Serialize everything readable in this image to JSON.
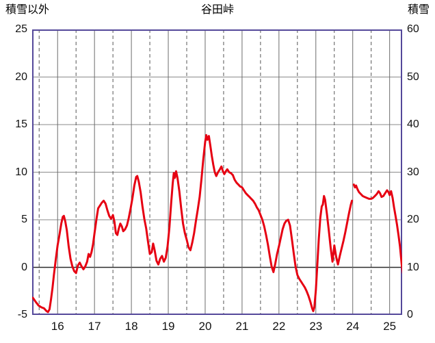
{
  "header": {
    "title": "谷田峠",
    "left_axis_label": "積雪以外",
    "right_axis_label": "積雪"
  },
  "chart_data": {
    "type": "line",
    "title": "谷田峠",
    "left_axis": {
      "label": "積雪以外",
      "ticks": [
        25,
        20,
        15,
        10,
        5,
        0,
        -5
      ],
      "range": [
        -5,
        25
      ]
    },
    "right_axis": {
      "label": "積雪",
      "ticks": [
        60,
        50,
        40,
        30,
        20,
        10,
        0
      ],
      "range": [
        0,
        60
      ]
    },
    "x_axis": {
      "ticks": [
        16,
        17,
        18,
        19,
        20,
        21,
        22,
        23,
        24,
        25
      ],
      "range": [
        15.31,
        25.34
      ]
    },
    "grid": {
      "h_values": [
        0,
        5,
        10,
        15,
        20
      ],
      "v_solid": [
        16,
        17,
        18,
        19,
        20,
        21,
        22,
        23,
        24,
        25
      ],
      "v_dashed": [
        15.5,
        16.5,
        17.5,
        18.5,
        19.5,
        20.5,
        21.5,
        22.5,
        23.5,
        24.5
      ]
    },
    "colors": {
      "line": "#e60012",
      "border": "#54489a",
      "grid": "#8a8a8a",
      "zero_line": "#2b2b2b",
      "dashed": "#555555",
      "background": "#ffffff"
    },
    "legend": "none",
    "series": [
      {
        "name": "red-line-segment-1",
        "points": [
          [
            15.33,
            -3.2
          ],
          [
            15.4,
            -3.6
          ],
          [
            15.48,
            -4.0
          ],
          [
            15.56,
            -4.2
          ],
          [
            15.63,
            -4.3
          ],
          [
            15.7,
            -4.6
          ],
          [
            15.74,
            -4.7
          ],
          [
            15.78,
            -4.4
          ],
          [
            15.82,
            -3.4
          ],
          [
            15.86,
            -2.2
          ],
          [
            15.9,
            -0.8
          ],
          [
            15.95,
            0.8
          ],
          [
            16.0,
            2.3
          ],
          [
            16.05,
            3.4
          ],
          [
            16.1,
            4.6
          ],
          [
            16.14,
            5.3
          ],
          [
            16.17,
            5.4
          ],
          [
            16.21,
            4.8
          ],
          [
            16.25,
            3.9
          ],
          [
            16.3,
            2.2
          ],
          [
            16.35,
            0.9
          ],
          [
            16.4,
            0.1
          ],
          [
            16.45,
            -0.4
          ],
          [
            16.5,
            -0.6
          ],
          [
            16.55,
            0.2
          ],
          [
            16.6,
            0.5
          ],
          [
            16.65,
            0.1
          ],
          [
            16.7,
            -0.2
          ],
          [
            16.75,
            0.1
          ],
          [
            16.8,
            0.6
          ],
          [
            16.84,
            1.4
          ],
          [
            16.88,
            1.1
          ],
          [
            16.92,
            1.6
          ],
          [
            16.96,
            2.4
          ],
          [
            17.0,
            3.6
          ],
          [
            17.05,
            5.0
          ],
          [
            17.1,
            6.2
          ],
          [
            17.15,
            6.5
          ],
          [
            17.2,
            6.8
          ],
          [
            17.25,
            7.0
          ],
          [
            17.3,
            6.7
          ],
          [
            17.35,
            6.0
          ],
          [
            17.4,
            5.4
          ],
          [
            17.45,
            5.1
          ],
          [
            17.5,
            5.5
          ],
          [
            17.54,
            4.8
          ],
          [
            17.58,
            3.6
          ],
          [
            17.62,
            3.4
          ],
          [
            17.66,
            4.1
          ],
          [
            17.7,
            4.6
          ],
          [
            17.74,
            4.3
          ],
          [
            17.78,
            3.8
          ],
          [
            17.83,
            4.0
          ],
          [
            17.88,
            4.4
          ],
          [
            17.93,
            5.2
          ],
          [
            17.98,
            6.2
          ],
          [
            18.03,
            7.3
          ],
          [
            18.08,
            8.6
          ],
          [
            18.13,
            9.5
          ],
          [
            18.16,
            9.6
          ],
          [
            18.2,
            9.0
          ],
          [
            18.25,
            7.9
          ],
          [
            18.3,
            6.4
          ],
          [
            18.35,
            5.1
          ],
          [
            18.4,
            4.1
          ],
          [
            18.45,
            2.7
          ],
          [
            18.5,
            1.4
          ],
          [
            18.55,
            1.6
          ],
          [
            18.59,
            2.5
          ],
          [
            18.63,
            1.8
          ],
          [
            18.68,
            0.7
          ],
          [
            18.73,
            0.3
          ],
          [
            18.78,
            0.9
          ],
          [
            18.83,
            1.2
          ],
          [
            18.88,
            0.6
          ],
          [
            18.93,
            1.0
          ],
          [
            18.98,
            2.2
          ],
          [
            19.03,
            4.2
          ],
          [
            19.08,
            6.8
          ],
          [
            19.12,
            8.8
          ],
          [
            19.15,
            9.9
          ],
          [
            19.18,
            9.4
          ],
          [
            19.21,
            10.1
          ],
          [
            19.25,
            9.4
          ],
          [
            19.3,
            8.0
          ],
          [
            19.35,
            6.2
          ],
          [
            19.4,
            4.6
          ],
          [
            19.45,
            3.6
          ],
          [
            19.5,
            2.9
          ],
          [
            19.55,
            2.1
          ],
          [
            19.6,
            1.8
          ],
          [
            19.65,
            2.6
          ],
          [
            19.7,
            3.6
          ],
          [
            19.75,
            4.9
          ],
          [
            19.8,
            6.1
          ],
          [
            19.85,
            7.4
          ],
          [
            19.9,
            9.3
          ],
          [
            19.95,
            11.4
          ],
          [
            20.0,
            13.2
          ],
          [
            20.03,
            13.9
          ],
          [
            20.06,
            13.4
          ],
          [
            20.1,
            13.8
          ],
          [
            20.14,
            12.8
          ],
          [
            20.18,
            11.7
          ],
          [
            20.22,
            10.8
          ],
          [
            20.26,
            10.0
          ],
          [
            20.3,
            9.6
          ],
          [
            20.35,
            10.0
          ],
          [
            20.4,
            10.3
          ],
          [
            20.44,
            10.6
          ],
          [
            20.48,
            10.1
          ],
          [
            20.52,
            9.8
          ],
          [
            20.56,
            10.1
          ],
          [
            20.6,
            10.3
          ],
          [
            20.65,
            10.0
          ],
          [
            20.7,
            9.9
          ],
          [
            20.75,
            9.7
          ],
          [
            20.8,
            9.2
          ],
          [
            20.85,
            8.9
          ],
          [
            20.9,
            8.7
          ],
          [
            20.95,
            8.5
          ],
          [
            21.0,
            8.4
          ],
          [
            21.05,
            8.1
          ],
          [
            21.1,
            7.8
          ],
          [
            21.15,
            7.6
          ],
          [
            21.2,
            7.4
          ],
          [
            21.25,
            7.2
          ],
          [
            21.3,
            7.0
          ],
          [
            21.35,
            6.7
          ],
          [
            21.4,
            6.3
          ],
          [
            21.45,
            6.0
          ],
          [
            21.5,
            5.5
          ],
          [
            21.55,
            5.0
          ],
          [
            21.6,
            4.3
          ],
          [
            21.65,
            3.4
          ],
          [
            21.7,
            2.4
          ],
          [
            21.75,
            1.2
          ],
          [
            21.8,
            0.1
          ],
          [
            21.85,
            -0.5
          ],
          [
            21.9,
            0.4
          ],
          [
            21.95,
            1.4
          ],
          [
            22.0,
            2.2
          ],
          [
            22.05,
            3.1
          ],
          [
            22.1,
            4.0
          ],
          [
            22.15,
            4.6
          ],
          [
            22.2,
            4.9
          ],
          [
            22.25,
            5.0
          ],
          [
            22.3,
            4.4
          ],
          [
            22.35,
            3.0
          ],
          [
            22.4,
            1.5
          ],
          [
            22.45,
            0.1
          ],
          [
            22.5,
            -0.8
          ],
          [
            22.55,
            -1.2
          ],
          [
            22.6,
            -1.5
          ],
          [
            22.65,
            -1.8
          ],
          [
            22.7,
            -2.1
          ],
          [
            22.75,
            -2.5
          ],
          [
            22.8,
            -3.0
          ],
          [
            22.85,
            -3.6
          ],
          [
            22.9,
            -4.3
          ],
          [
            22.93,
            -4.6
          ],
          [
            22.96,
            -4.2
          ],
          [
            23.0,
            -2.4
          ],
          [
            23.04,
            0.2
          ],
          [
            23.08,
            3.0
          ],
          [
            23.12,
            5.2
          ],
          [
            23.16,
            6.4
          ],
          [
            23.19,
            6.6
          ],
          [
            23.22,
            7.5
          ],
          [
            23.25,
            7.1
          ],
          [
            23.3,
            5.6
          ],
          [
            23.35,
            3.9
          ],
          [
            23.4,
            2.1
          ],
          [
            23.45,
            0.6
          ],
          [
            23.5,
            2.3
          ],
          [
            23.55,
            1.1
          ],
          [
            23.6,
            0.3
          ],
          [
            23.65,
            1.2
          ],
          [
            23.7,
            2.0
          ],
          [
            23.75,
            2.8
          ],
          [
            23.8,
            3.7
          ],
          [
            23.85,
            4.7
          ],
          [
            23.9,
            5.7
          ],
          [
            23.95,
            6.6
          ],
          [
            23.98,
            7.0
          ]
        ]
      },
      {
        "name": "red-line-segment-2",
        "points": [
          [
            24.03,
            8.7
          ],
          [
            24.06,
            8.4
          ],
          [
            24.09,
            8.6
          ],
          [
            24.13,
            8.2
          ],
          [
            24.17,
            7.9
          ],
          [
            24.22,
            7.7
          ],
          [
            24.27,
            7.5
          ],
          [
            24.32,
            7.4
          ],
          [
            24.38,
            7.3
          ],
          [
            24.44,
            7.2
          ],
          [
            24.5,
            7.2
          ],
          [
            24.55,
            7.3
          ],
          [
            24.6,
            7.5
          ],
          [
            24.65,
            7.7
          ],
          [
            24.7,
            8.0
          ],
          [
            24.74,
            7.8
          ],
          [
            24.78,
            7.4
          ],
          [
            24.83,
            7.5
          ],
          [
            24.88,
            7.8
          ],
          [
            24.93,
            8.1
          ],
          [
            24.97,
            7.9
          ],
          [
            25.0,
            7.6
          ],
          [
            25.04,
            8.0
          ],
          [
            25.08,
            7.3
          ],
          [
            25.12,
            6.3
          ],
          [
            25.16,
            5.4
          ],
          [
            25.2,
            4.5
          ],
          [
            25.24,
            3.4
          ],
          [
            25.28,
            2.2
          ],
          [
            25.31,
            1.0
          ],
          [
            25.33,
            0.2
          ],
          [
            25.36,
            -0.6
          ]
        ]
      }
    ]
  }
}
